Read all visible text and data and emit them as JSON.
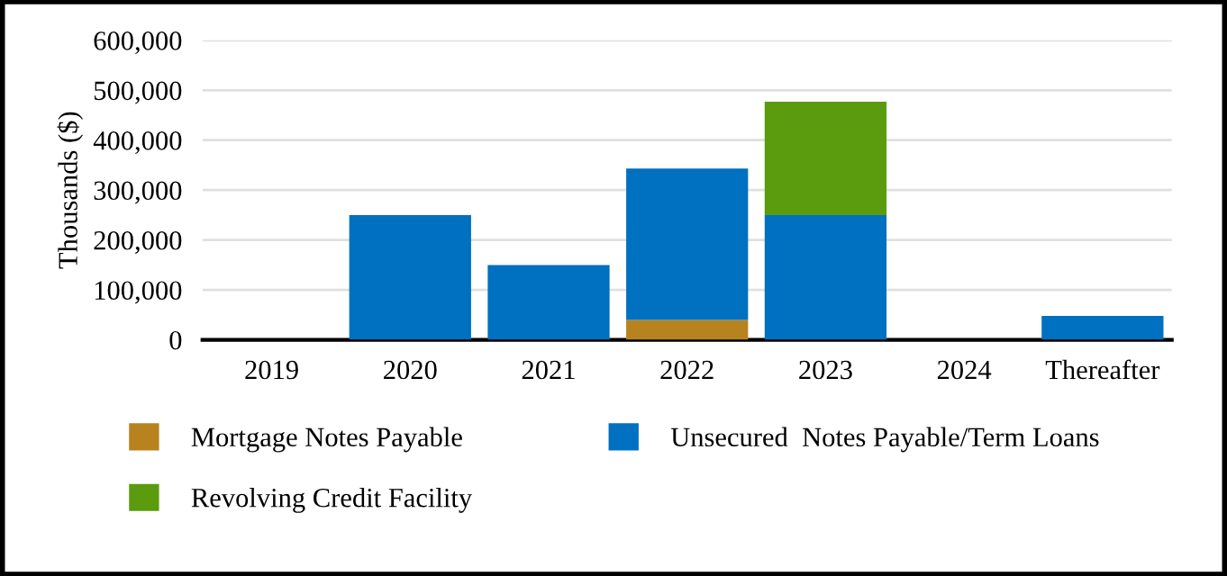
{
  "chart_data": {
    "type": "bar",
    "stacked": true,
    "ylabel": "Thousands ($)",
    "categories": [
      "2019",
      "2020",
      "2021",
      "2022",
      "2023",
      "2024",
      "Thereafter"
    ],
    "series": [
      {
        "name": "Mortgage Notes Payable",
        "color": "#b8821e",
        "values": [
          0,
          0,
          0,
          40000,
          0,
          0,
          0
        ]
      },
      {
        "name": "Unsecured  Notes Payable/Term Loans",
        "color": "#0070c0",
        "values": [
          0,
          250000,
          150000,
          303000,
          250000,
          0,
          48000
        ]
      },
      {
        "name": "Revolving Credit Facility",
        "color": "#5b9b0e",
        "values": [
          0,
          0,
          0,
          0,
          227000,
          0,
          0
        ]
      }
    ],
    "ylim": [
      0,
      600000
    ],
    "yticks": [
      {
        "value": 0,
        "label": "0"
      },
      {
        "value": 100000,
        "label": "100,000"
      },
      {
        "value": 200000,
        "label": "200,000"
      },
      {
        "value": 300000,
        "label": "300,000"
      },
      {
        "value": 400000,
        "label": "400,000"
      },
      {
        "value": 500000,
        "label": "500,000"
      },
      {
        "value": 600000,
        "label": "600,000"
      }
    ],
    "grid": "y",
    "legend": "bottom"
  }
}
